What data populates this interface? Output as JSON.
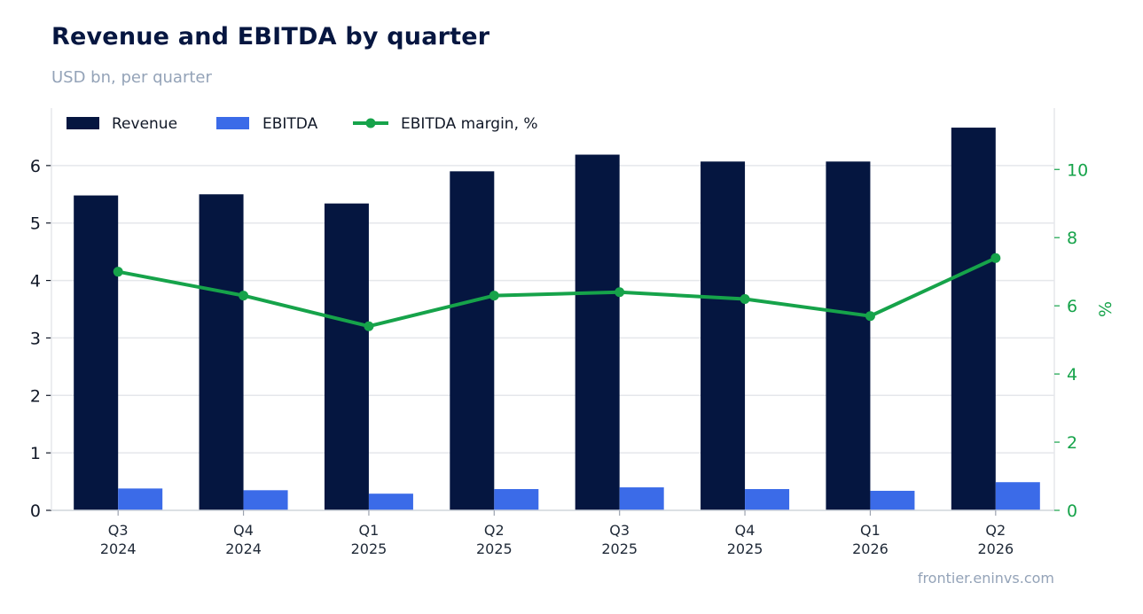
{
  "title": "Revenue and EBITDA by quarter",
  "subtitle": "USD bn, per quarter",
  "source": "frontier.eninvs.com",
  "colors": {
    "revenue": "#051640",
    "ebitda": "#3b6be8",
    "margin": "#16a34a",
    "grid": "#e5e7eb"
  },
  "chart_data": {
    "type": "bar",
    "categories": [
      [
        "Q3",
        "2024"
      ],
      [
        "Q4",
        "2024"
      ],
      [
        "Q1",
        "2025"
      ],
      [
        "Q2",
        "2025"
      ],
      [
        "Q3",
        "2025"
      ],
      [
        "Q4",
        "2025"
      ],
      [
        "Q1",
        "2026"
      ],
      [
        "Q2",
        "2026"
      ]
    ],
    "series": [
      {
        "name": "Revenue",
        "type": "bar",
        "axis": "left",
        "values": [
          5.48,
          5.5,
          5.34,
          5.9,
          6.19,
          6.07,
          6.07,
          6.66
        ]
      },
      {
        "name": "EBITDA",
        "type": "bar",
        "axis": "left",
        "values": [
          0.38,
          0.35,
          0.29,
          0.37,
          0.4,
          0.37,
          0.34,
          0.49
        ]
      },
      {
        "name": "EBITDA margin, %",
        "type": "line",
        "axis": "right",
        "values": [
          7.0,
          6.3,
          5.4,
          6.3,
          6.4,
          6.2,
          5.7,
          7.4
        ]
      }
    ],
    "ylim": [
      0,
      7
    ],
    "yticks": [
      0,
      1,
      2,
      3,
      4,
      5,
      6
    ],
    "y2lim": [
      0,
      11.8
    ],
    "y2ticks": [
      0,
      2,
      4,
      6,
      8,
      10
    ],
    "y2label": "%",
    "grid": true,
    "legend": "top-left"
  }
}
